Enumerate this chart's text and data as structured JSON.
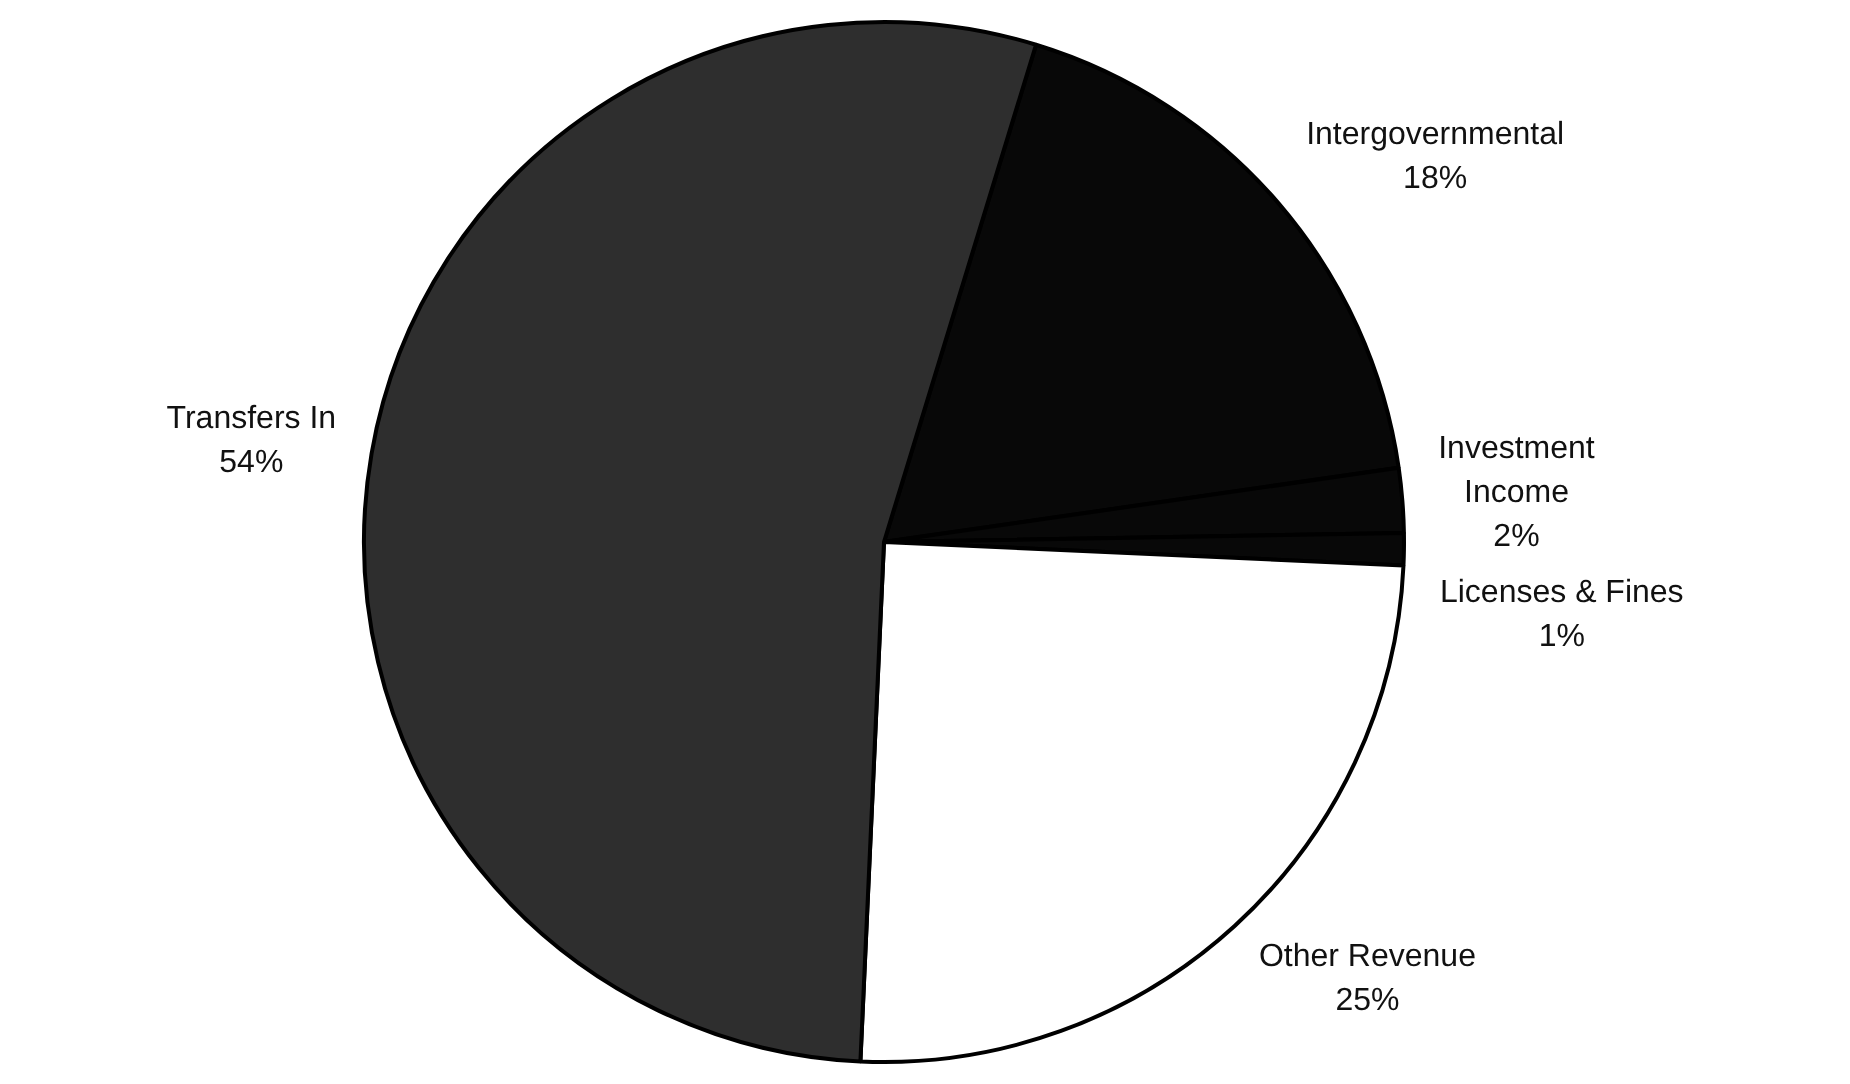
{
  "chart_data": {
    "type": "pie",
    "categories": [
      "Intergovernmental",
      "Investment Income",
      "Licenses & Fines",
      "Other Revenue",
      "Transfers In"
    ],
    "values": [
      18,
      2,
      1,
      25,
      54
    ],
    "value_labels": [
      "18%",
      "2%",
      "1%",
      "25%",
      "54%"
    ],
    "colors": [
      "#080808",
      "#080808",
      "#080808",
      "#ffffff",
      "#2e2e2e"
    ],
    "legend": false
  }
}
